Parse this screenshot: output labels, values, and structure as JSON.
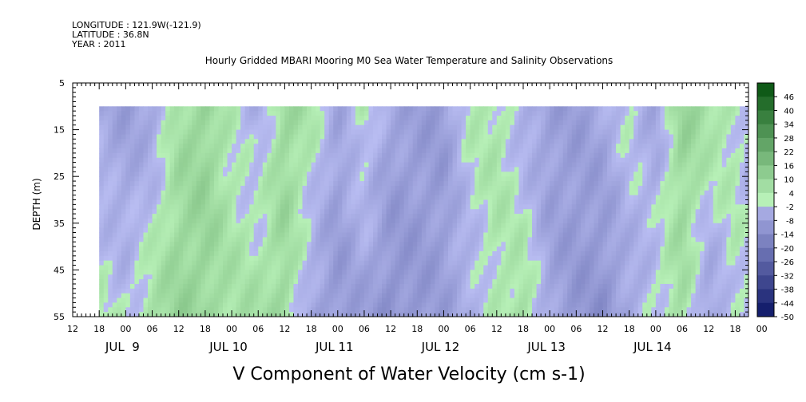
{
  "header": {
    "longitude": "LONGITUDE : 121.9W(-121.9)",
    "latitude": "LATITUDE : 36.8N",
    "year": "YEAR : 2011"
  },
  "chart_data": {
    "type": "heatmap",
    "title": "Hourly Gridded MBARI Mooring M0 Sea Water Temperature and Salinity Observations",
    "xlabel": "V Component of Water Velocity (cm s-1)",
    "ylabel": "DEPTH (m)",
    "ylim": [
      5,
      55
    ],
    "y_inverted": true,
    "y_ticks": [
      5,
      15,
      25,
      35,
      45,
      55
    ],
    "data_depth_range": [
      10,
      55
    ],
    "x_range_hours": [
      -12,
      141
    ],
    "data_start_hour": -6,
    "x_hour_ticks": [
      "12",
      "18",
      "00",
      "06",
      "12",
      "18",
      "00",
      "06",
      "12",
      "18",
      "00",
      "06",
      "12",
      "18",
      "00",
      "06",
      "12",
      "18",
      "00",
      "06",
      "12",
      "18",
      "00",
      "06",
      "12",
      "18",
      "00"
    ],
    "x_day_labels": [
      "JUL  9",
      "JUL 10",
      "JUL 11",
      "JUL 12",
      "JUL 13",
      "JUL 14"
    ],
    "colorbar": {
      "levels": [
        -50,
        -44,
        -38,
        -32,
        -26,
        -20,
        -14,
        -8,
        -2,
        4,
        10,
        16,
        22,
        28,
        34,
        40,
        46
      ],
      "neg_high": "#0b1565",
      "neg_low": "#b9bdf2",
      "pos_low": "#b7f0b7",
      "pos_high": "#0f5a17"
    },
    "grid": false,
    "legend": "colorbar-right",
    "field_pattern_by_time": [
      {
        "hour": -6,
        "top": -5,
        "bottom": 3
      },
      {
        "hour": 0,
        "top": -8,
        "bottom": 0
      },
      {
        "hour": 6,
        "top": -6,
        "bottom": 6
      },
      {
        "hour": 12,
        "top": 6,
        "bottom": 10
      },
      {
        "hour": 18,
        "top": 10,
        "bottom": 9
      },
      {
        "hour": 24,
        "top": 2,
        "bottom": 6
      },
      {
        "hour": 30,
        "top": -4,
        "bottom": 6
      },
      {
        "hour": 36,
        "top": 9,
        "bottom": 8
      },
      {
        "hour": 42,
        "top": 5,
        "bottom": -6
      },
      {
        "hour": 48,
        "top": -6,
        "bottom": -10
      },
      {
        "hour": 54,
        "top": 4,
        "bottom": -8
      },
      {
        "hour": 60,
        "top": -6,
        "bottom": -12
      },
      {
        "hour": 66,
        "top": -8,
        "bottom": -10
      },
      {
        "hour": 72,
        "top": -9,
        "bottom": -8
      },
      {
        "hour": 78,
        "top": 3,
        "bottom": -4
      },
      {
        "hour": 84,
        "top": 5,
        "bottom": 3
      },
      {
        "hour": 90,
        "top": -4,
        "bottom": 7
      },
      {
        "hour": 96,
        "top": -8,
        "bottom": -6
      },
      {
        "hour": 102,
        "top": -8,
        "bottom": -10
      },
      {
        "hour": 108,
        "top": -5,
        "bottom": -12
      },
      {
        "hour": 114,
        "top": 2,
        "bottom": -6
      },
      {
        "hour": 120,
        "top": -6,
        "bottom": 2
      },
      {
        "hour": 126,
        "top": 10,
        "bottom": 6
      },
      {
        "hour": 132,
        "top": 7,
        "bottom": -8
      },
      {
        "hour": 138,
        "top": 3,
        "bottom": 2
      },
      {
        "hour": 141,
        "top": -2,
        "bottom": 0
      }
    ]
  }
}
